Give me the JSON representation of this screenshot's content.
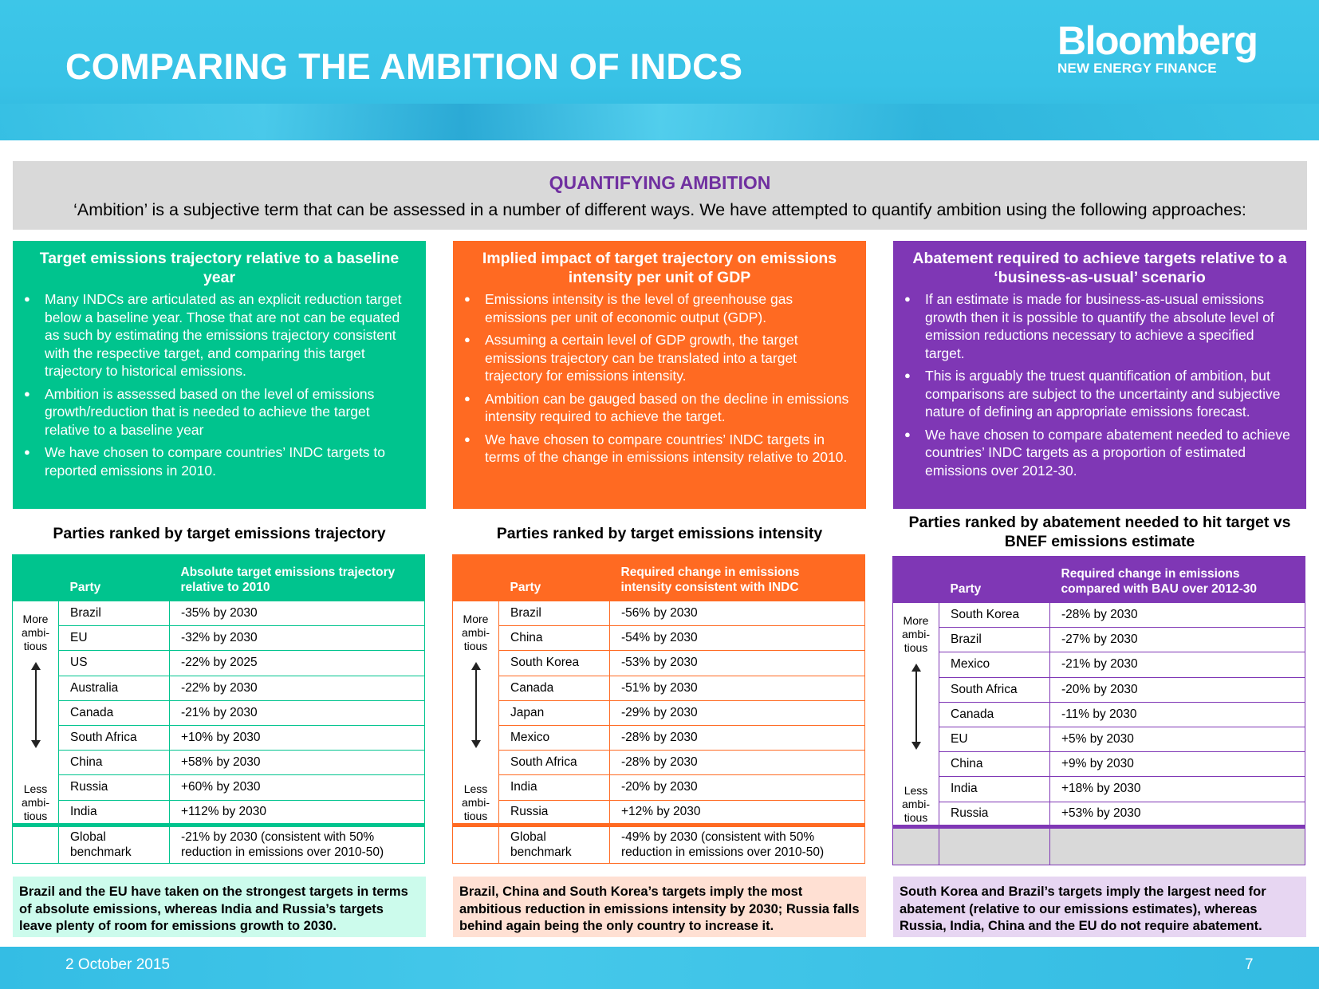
{
  "header": {
    "title": "COMPARING THE AMBITION OF INDCS",
    "logo_line1": "Bloomberg",
    "logo_line2": "NEW ENERGY FINANCE"
  },
  "intro": {
    "title": "QUANTIFYING AMBITION",
    "text": "‘Ambition’ is a subjective term that can be assessed in a number of different ways. We have attempted to quantify ambition using the following approaches:"
  },
  "approaches": [
    {
      "title": "Target emissions trajectory relative to a baseline year",
      "bullets": [
        "Many INDCs are articulated as an explicit reduction target below a baseline year. Those that are not can be equated as such by estimating the emissions trajectory consistent with the respective target, and comparing this target trajectory to historical emissions.",
        "Ambition is assessed based on the level of emissions growth/reduction that is needed to achieve the target relative to a baseline year",
        "We have chosen to compare countries’ INDC targets to reported emissions in 2010."
      ]
    },
    {
      "title": "Implied impact of target trajectory on emissions intensity per unit of GDP",
      "bullets": [
        "Emissions intensity is the level of greenhouse gas emissions per unit of economic output (GDP).",
        "Assuming a certain level of GDP growth, the target emissions trajectory can be translated into a target trajectory for emissions intensity.",
        "Ambition can be gauged based on the decline in emissions intensity required to achieve the target.",
        "We have chosen to compare countries’ INDC targets in terms of the change in emissions intensity relative to 2010."
      ]
    },
    {
      "title": "Abatement required to achieve targets relative to a ‘business-as-usual’ scenario",
      "bullets": [
        "If an estimate is made for business-as-usual emissions growth then it is possible to quantify the absolute level of emission reductions necessary to achieve a specified target.",
        "This is arguably the truest quantification of ambition, but comparisons are subject to the uncertainty and subjective nature of defining an appropriate emissions forecast.",
        "We have chosen to compare abatement needed to achieve countries’ INDC targets as a proportion of estimated emissions over 2012-30."
      ]
    }
  ],
  "side": {
    "more": "More ambi- tious",
    "less": "Less ambi- tious"
  },
  "tables": [
    {
      "title": "Parties ranked by target emissions trajectory",
      "col_party": "Party",
      "col_value": "Absolute target emissions trajectory relative to 2010",
      "rows": [
        {
          "party": "Brazil",
          "value": "-35% by 2030"
        },
        {
          "party": "EU",
          "value": "-32% by 2030"
        },
        {
          "party": "US",
          "value": "-22% by 2025"
        },
        {
          "party": "Australia",
          "value": "-22% by 2030"
        },
        {
          "party": "Canada",
          "value": "-21% by 2030"
        },
        {
          "party": "South Africa",
          "value": "+10% by 2030"
        },
        {
          "party": "China",
          "value": "+58% by 2030"
        },
        {
          "party": "Russia",
          "value": "+60% by 2030"
        },
        {
          "party": "India",
          "value": "+112% by 2030"
        }
      ],
      "footer_party": "Global benchmark",
      "footer_value": "-21% by 2030 (consistent with 50% reduction in emissions over 2010-50)"
    },
    {
      "title": "Parties ranked by target emissions intensity",
      "col_party": "Party",
      "col_value": "Required change in emissions intensity consistent with INDC",
      "rows": [
        {
          "party": "Brazil",
          "value": "-56% by 2030"
        },
        {
          "party": "China",
          "value": "-54% by 2030"
        },
        {
          "party": "South Korea",
          "value": "-53% by 2030"
        },
        {
          "party": "Canada",
          "value": "-51% by 2030"
        },
        {
          "party": "Japan",
          "value": "-29% by 2030"
        },
        {
          "party": "Mexico",
          "value": "-28% by 2030"
        },
        {
          "party": "South Africa",
          "value": "-28% by 2030"
        },
        {
          "party": "India",
          "value": "-20% by 2030"
        },
        {
          "party": "Russia",
          "value": "+12% by 2030"
        }
      ],
      "footer_party": "Global benchmark",
      "footer_value": "-49% by 2030 (consistent with 50% reduction in emissions over 2010-50)"
    },
    {
      "title": "Parties ranked by abatement needed to hit target vs BNEF emissions estimate",
      "col_party": "Party",
      "col_value": "Required change in emissions compared with BAU over 2012-30",
      "rows": [
        {
          "party": "South Korea",
          "value": "-28% by 2030"
        },
        {
          "party": "Brazil",
          "value": "-27% by 2030"
        },
        {
          "party": "Mexico",
          "value": "-21% by 2030"
        },
        {
          "party": "South Africa",
          "value": "-20% by 2030"
        },
        {
          "party": "Canada",
          "value": "-11% by 2030"
        },
        {
          "party": "EU",
          "value": "+5% by 2030"
        },
        {
          "party": "China",
          "value": "+9% by 2030"
        },
        {
          "party": "India",
          "value": "+18% by 2030"
        },
        {
          "party": "Russia",
          "value": "+53% by 2030"
        }
      ]
    }
  ],
  "conclusions": [
    "Brazil and the EU have taken on the strongest targets in terms of absolute emissions, whereas India and Russia’s targets leave plenty of room for emissions growth to 2030.",
    "Brazil, China and South Korea’s targets imply the most ambitious reduction in emissions intensity by 2030; Russia falls behind again being the only country to increase it.",
    "South Korea and Brazil’s targets imply the largest need for abatement (relative to our emissions estimates), whereas Russia, India, China and the EU do not require abatement."
  ],
  "footer": {
    "date": "2 October 2015",
    "page": "7"
  },
  "colors": {
    "green": "#00c48e",
    "orange": "#ff6a22",
    "purple": "#7f37b5",
    "cyan": "#3dc6e8"
  }
}
